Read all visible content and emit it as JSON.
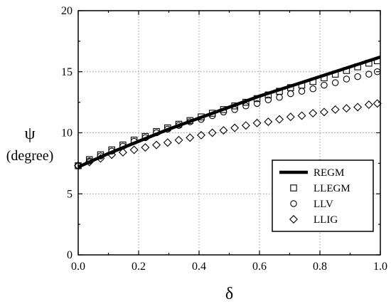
{
  "chart_data": {
    "type": "line",
    "title": "",
    "xlabel": "δ",
    "ylabel_line1": "ψ",
    "ylabel_line2": "(degree)",
    "xlim": [
      0.0,
      1.0
    ],
    "ylim": [
      0,
      20
    ],
    "xticks": [
      0.0,
      0.2,
      0.4,
      0.6,
      0.8,
      1.0
    ],
    "xtick_labels": [
      "0.0",
      "0.2",
      "0.4",
      "0.6",
      "0.8",
      "1.0"
    ],
    "yticks": [
      0,
      5,
      10,
      15,
      20
    ],
    "ytick_labels": [
      "0",
      "5",
      "10",
      "15",
      "20"
    ],
    "grid": true,
    "legend_position": "lower-right",
    "series": [
      {
        "name": "REGM",
        "style": "thick-line",
        "x": [
          0.0,
          0.1,
          0.2,
          0.3,
          0.4,
          0.5,
          0.6,
          0.7,
          0.8,
          0.9,
          1.0
        ],
        "y": [
          7.2,
          8.3,
          9.3,
          10.3,
          11.2,
          12.1,
          13.0,
          13.8,
          14.6,
          15.4,
          16.2
        ]
      },
      {
        "name": "LLEGM",
        "style": "square",
        "x": [
          0.0,
          0.037,
          0.074,
          0.111,
          0.148,
          0.185,
          0.222,
          0.259,
          0.296,
          0.333,
          0.37,
          0.407,
          0.444,
          0.481,
          0.518,
          0.555,
          0.592,
          0.629,
          0.666,
          0.703,
          0.74,
          0.777,
          0.814,
          0.851,
          0.888,
          0.925,
          0.962,
          0.99
        ],
        "y": [
          7.3,
          7.8,
          8.2,
          8.6,
          9.0,
          9.4,
          9.7,
          10.1,
          10.4,
          10.7,
          11.0,
          11.3,
          11.6,
          11.9,
          12.2,
          12.5,
          12.8,
          13.1,
          13.4,
          13.7,
          13.9,
          14.2,
          14.5,
          14.8,
          15.1,
          15.4,
          15.7,
          15.9
        ]
      },
      {
        "name": "LLV",
        "style": "circle",
        "x": [
          0.0,
          0.037,
          0.074,
          0.111,
          0.148,
          0.185,
          0.222,
          0.259,
          0.296,
          0.333,
          0.37,
          0.407,
          0.444,
          0.481,
          0.518,
          0.555,
          0.592,
          0.629,
          0.666,
          0.703,
          0.74,
          0.777,
          0.814,
          0.851,
          0.888,
          0.925,
          0.962,
          0.99
        ],
        "y": [
          7.3,
          7.7,
          8.1,
          8.5,
          8.9,
          9.3,
          9.6,
          10.0,
          10.3,
          10.6,
          10.9,
          11.1,
          11.4,
          11.7,
          11.9,
          12.2,
          12.4,
          12.7,
          12.9,
          13.2,
          13.4,
          13.6,
          13.9,
          14.1,
          14.4,
          14.6,
          14.8,
          15.0
        ]
      },
      {
        "name": "LLIG",
        "style": "diamond",
        "x": [
          0.0,
          0.037,
          0.074,
          0.111,
          0.148,
          0.185,
          0.222,
          0.259,
          0.296,
          0.333,
          0.37,
          0.407,
          0.444,
          0.481,
          0.518,
          0.555,
          0.592,
          0.629,
          0.666,
          0.703,
          0.74,
          0.777,
          0.814,
          0.851,
          0.888,
          0.925,
          0.962,
          0.99
        ],
        "y": [
          7.3,
          7.6,
          7.9,
          8.2,
          8.4,
          8.6,
          8.8,
          9.0,
          9.2,
          9.4,
          9.6,
          9.8,
          10.0,
          10.2,
          10.4,
          10.6,
          10.8,
          10.9,
          11.1,
          11.3,
          11.4,
          11.6,
          11.7,
          11.9,
          12.0,
          12.1,
          12.3,
          12.4
        ]
      }
    ]
  }
}
